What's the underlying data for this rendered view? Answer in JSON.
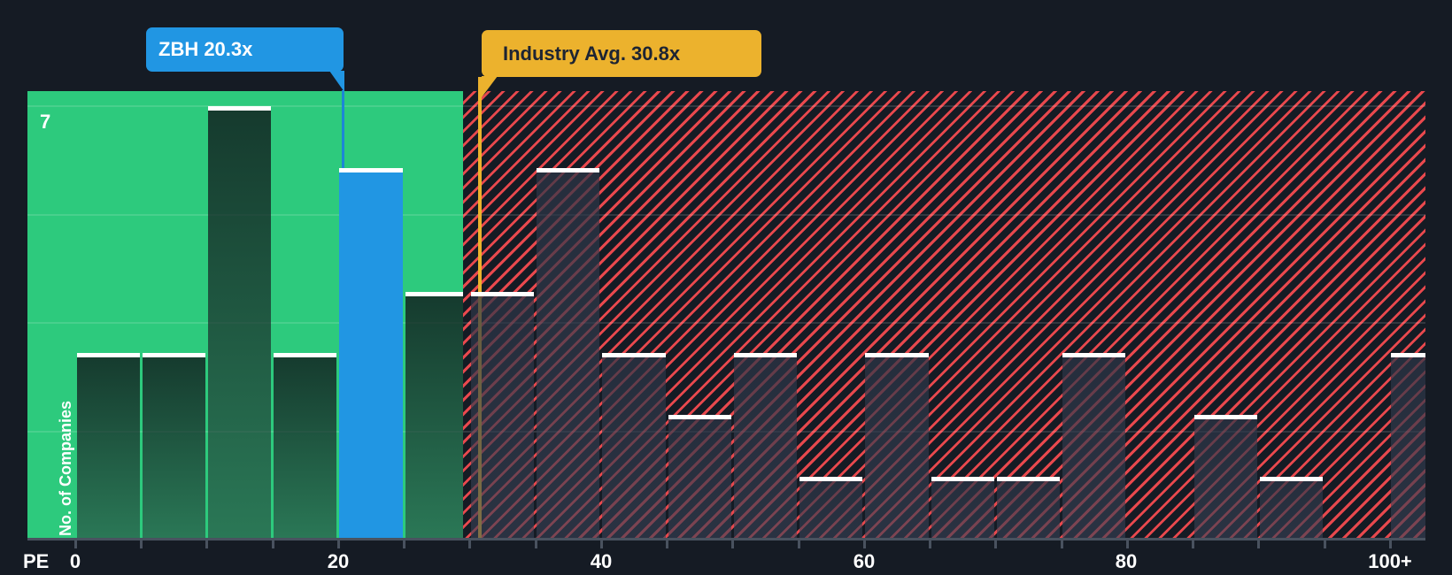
{
  "chart_data": {
    "type": "bar",
    "categories": [
      "0-5",
      "5-10",
      "10-15",
      "15-20",
      "20-25",
      "25-30",
      "30-35",
      "35-40",
      "40-45",
      "45-50",
      "50-55",
      "55-60",
      "60-65",
      "65-70",
      "70-75",
      "75-80",
      "80-85",
      "85-90",
      "90-95",
      "95-100",
      "100+"
    ],
    "values": [
      3,
      3,
      7,
      3,
      6,
      4,
      4,
      6,
      3,
      2,
      3,
      1,
      3,
      1,
      1,
      3,
      0,
      2,
      1,
      0,
      3
    ],
    "xlabel": "PE",
    "ylabel": "No. of Companies",
    "ylim": [
      0,
      7
    ],
    "x_tick_labels": [
      "0",
      "20",
      "40",
      "60",
      "80",
      "100+"
    ],
    "x_tick_values": [
      0,
      20,
      40,
      60,
      80,
      100
    ],
    "y_max_tick_label": "7",
    "grid": true,
    "legend_position": "none",
    "company_marker": {
      "ticker": "ZBH",
      "pe": 20.3,
      "label": "ZBH 20.3x",
      "bucket_index": 4
    },
    "industry_marker": {
      "pe": 30.8,
      "label": "Industry Avg. 30.8x"
    },
    "zones": {
      "below_average": {
        "end_pe": 29.5,
        "style": "solid-green",
        "color": "#2dca7d"
      },
      "above_average": {
        "style": "red-diagonal-hatch",
        "color": "#e8484d"
      }
    }
  },
  "axis": {
    "x_title": "PE",
    "y_title": "No. of Companies",
    "y_top_label": "7",
    "tick_labels": [
      "0",
      "20",
      "40",
      "60",
      "80",
      "100+"
    ]
  },
  "tooltips": {
    "company": "ZBH 20.3x",
    "industry": "Industry Avg. 30.8x"
  },
  "colors": {
    "background": "#151b24",
    "company_blue": "#2196e3",
    "industry_gold": "#ecb22d",
    "zone_green": "#2dca7d",
    "hatch_red": "#e8484d",
    "cap_white": "#ffffff",
    "axis_line": "#49525f",
    "label_text": "#ffffff",
    "industry_tooltip_text": "#1d2433"
  }
}
